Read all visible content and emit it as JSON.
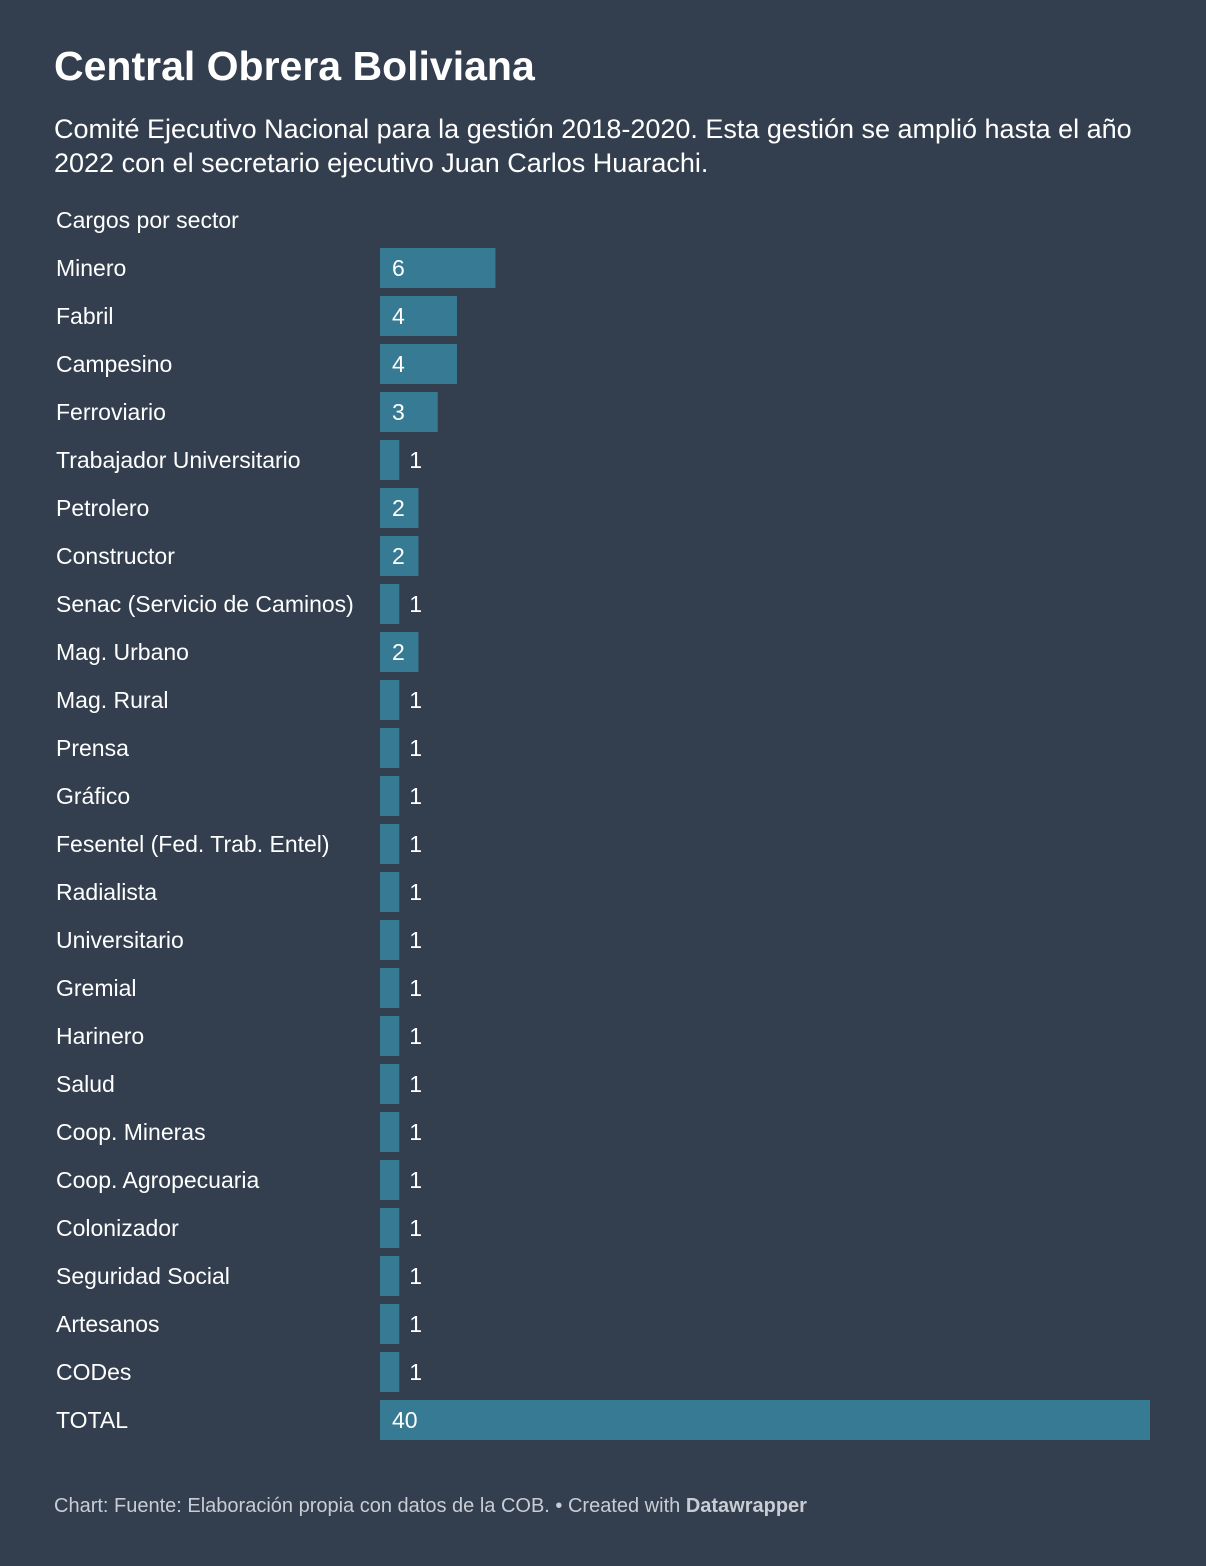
{
  "title": "Central Obrera Boliviana",
  "subtitle": "Comité Ejecutivo Nacional para la gestión 2018-2020. Esta gestión se amplió hasta el año 2022 con el secretario ejecutivo Juan Carlos Huarachi.",
  "column_header": "Cargos por sector",
  "footer": {
    "source": "Chart: Fuente: Elaboración propia con datos de la COB.",
    "separator": " • ",
    "created_with": "Created with",
    "brand": "Datawrapper"
  },
  "colors": {
    "background": "#333e4e",
    "bar": "#367a93",
    "text": "#ffffff",
    "footer_text": "#c9cdd3"
  },
  "chart_data": {
    "type": "bar",
    "orientation": "horizontal",
    "categories": [
      "Minero",
      "Fabril",
      "Campesino",
      "Ferroviario",
      "Trabajador Universitario",
      "Petrolero",
      "Constructor",
      "Senac (Servicio de Caminos)",
      "Mag. Urbano",
      "Mag. Rural",
      "Prensa",
      "Gráfico",
      "Fesentel (Fed. Trab. Entel)",
      "Radialista",
      "Universitario",
      "Gremial",
      "Harinero",
      "Salud",
      "Coop. Mineras",
      "Coop. Agropecuaria",
      "Colonizador",
      "Seguridad Social",
      "Artesanos",
      "CODes",
      "TOTAL"
    ],
    "values": [
      6,
      4,
      4,
      3,
      1,
      2,
      2,
      1,
      2,
      1,
      1,
      1,
      1,
      1,
      1,
      1,
      1,
      1,
      1,
      1,
      1,
      1,
      1,
      1,
      40
    ],
    "xlim": [
      0,
      40
    ],
    "grid": false,
    "data_labels": true
  }
}
